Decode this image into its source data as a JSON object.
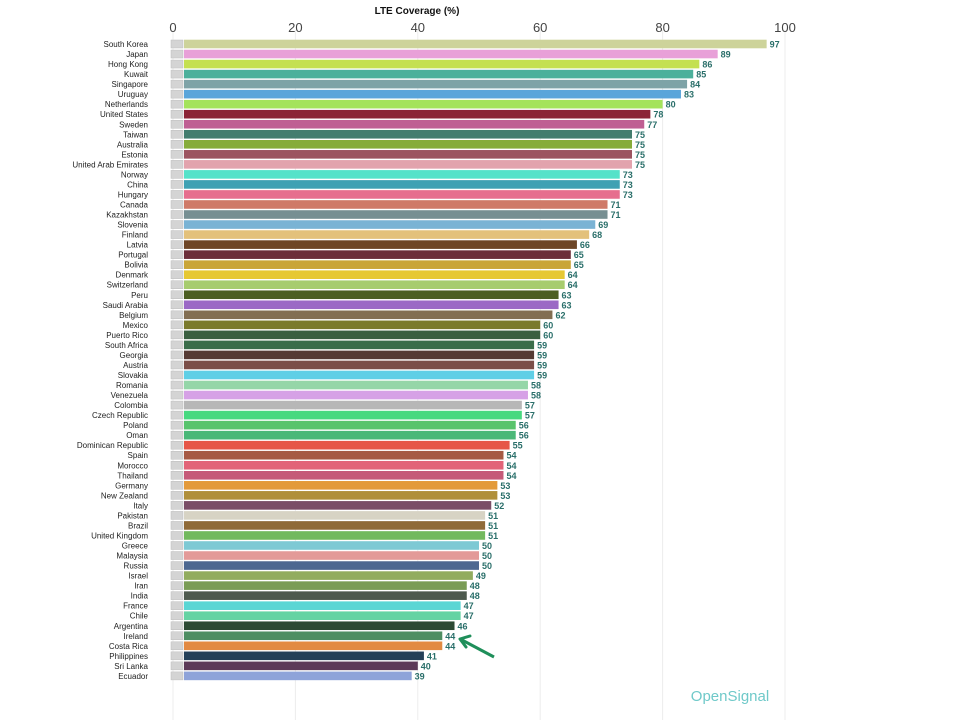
{
  "brand": "OpenSignal",
  "arrow_color": "#1f8f5a",
  "chart_data": {
    "type": "bar",
    "orientation": "horizontal",
    "title": "LTE Coverage (%)",
    "xlim": [
      0,
      100
    ],
    "xticks": [
      0,
      20,
      40,
      60,
      80,
      100
    ],
    "grid": true,
    "annotation": {
      "type": "arrow",
      "points_to": "Ireland"
    },
    "categories": [
      "South Korea",
      "Japan",
      "Hong Kong",
      "Kuwait",
      "Singapore",
      "Uruguay",
      "Netherlands",
      "United States",
      "Sweden",
      "Taiwan",
      "Australia",
      "Estonia",
      "United Arab Emirates",
      "Norway",
      "China",
      "Hungary",
      "Canada",
      "Kazakhstan",
      "Slovenia",
      "Finland",
      "Latvia",
      "Portugal",
      "Bolivia",
      "Denmark",
      "Switzerland",
      "Peru",
      "Saudi Arabia",
      "Belgium",
      "Mexico",
      "Puerto Rico",
      "South Africa",
      "Georgia",
      "Austria",
      "Slovakia",
      "Romania",
      "Venezuela",
      "Colombia",
      "Czech Republic",
      "Poland",
      "Oman",
      "Dominican Republic",
      "Spain",
      "Morocco",
      "Thailand",
      "Germany",
      "New Zealand",
      "Italy",
      "Pakistan",
      "Brazil",
      "United Kingdom",
      "Greece",
      "Malaysia",
      "Russia",
      "Israel",
      "Iran",
      "India",
      "France",
      "Chile",
      "Argentina",
      "Ireland",
      "Costa Rica",
      "Philippines",
      "Sri Lanka",
      "Ecuador"
    ],
    "values": [
      97,
      89,
      86,
      85,
      84,
      83,
      80,
      78,
      77,
      75,
      75,
      75,
      75,
      73,
      73,
      73,
      71,
      71,
      69,
      68,
      66,
      65,
      65,
      64,
      64,
      63,
      63,
      62,
      60,
      60,
      59,
      59,
      59,
      59,
      58,
      58,
      57,
      57,
      56,
      56,
      55,
      54,
      54,
      54,
      53,
      53,
      52,
      51,
      51,
      51,
      50,
      50,
      50,
      49,
      48,
      48,
      47,
      47,
      46,
      44,
      44,
      41,
      40,
      39
    ],
    "colors": [
      "#cdd39a",
      "#e8a0d8",
      "#c4e051",
      "#4bb09b",
      "#7ea3a7",
      "#5aa5da",
      "#a4e35b",
      "#8b2436",
      "#bf5f93",
      "#437d6e",
      "#86ac3a",
      "#9c5460",
      "#e2a3ad",
      "#55e2c9",
      "#3fa1b3",
      "#e66e8e",
      "#cf7a68",
      "#778f92",
      "#7ab3d4",
      "#e3c17b",
      "#6e4626",
      "#6c2e39",
      "#c9a537",
      "#e6c833",
      "#a7cc6e",
      "#4c5e22",
      "#9b69c5",
      "#826e52",
      "#7a7a2c",
      "#3a5f40",
      "#3a6d4a",
      "#553a34",
      "#7b4e48",
      "#5fcfe6",
      "#95d6a8",
      "#d6a1e6",
      "#b7b7b7",
      "#47d97f",
      "#58c46c",
      "#4ab878",
      "#e65648",
      "#a65a44",
      "#e26478",
      "#c55a78",
      "#e39a3a",
      "#b08f3a",
      "#7a4e66",
      "#d7d3c4",
      "#8f6a38",
      "#72b95e",
      "#7ec9d4",
      "#e39a98",
      "#4d6890",
      "#92ac5e",
      "#7a9c55",
      "#4e5a4e",
      "#5ad6d4",
      "#65d3a3",
      "#2d4a34",
      "#4e8e62",
      "#e28a42",
      "#244058",
      "#5c3a58",
      "#8ea3d9"
    ]
  }
}
